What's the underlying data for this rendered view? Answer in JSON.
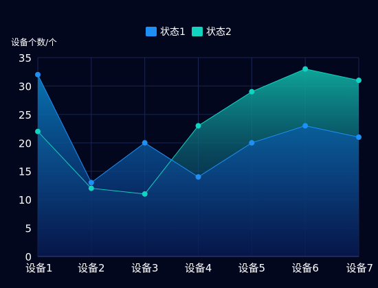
{
  "chart_data": {
    "type": "area",
    "ylabel": "设备个数/个",
    "categories": [
      "设备1",
      "设备2",
      "设备3",
      "设备4",
      "设备5",
      "设备6",
      "设备7"
    ],
    "ylim": [
      0,
      35
    ],
    "yticks": [
      0,
      5,
      10,
      15,
      20,
      25,
      30,
      35
    ],
    "grid": true,
    "legend_position": "top-center",
    "series": [
      {
        "name": "状态1",
        "color": "#1e90f5",
        "values": [
          32,
          13,
          20,
          14,
          20,
          23,
          21
        ]
      },
      {
        "name": "状态2",
        "color": "#12d3c0",
        "values": [
          22,
          12,
          11,
          23,
          29,
          33,
          31
        ]
      }
    ]
  }
}
